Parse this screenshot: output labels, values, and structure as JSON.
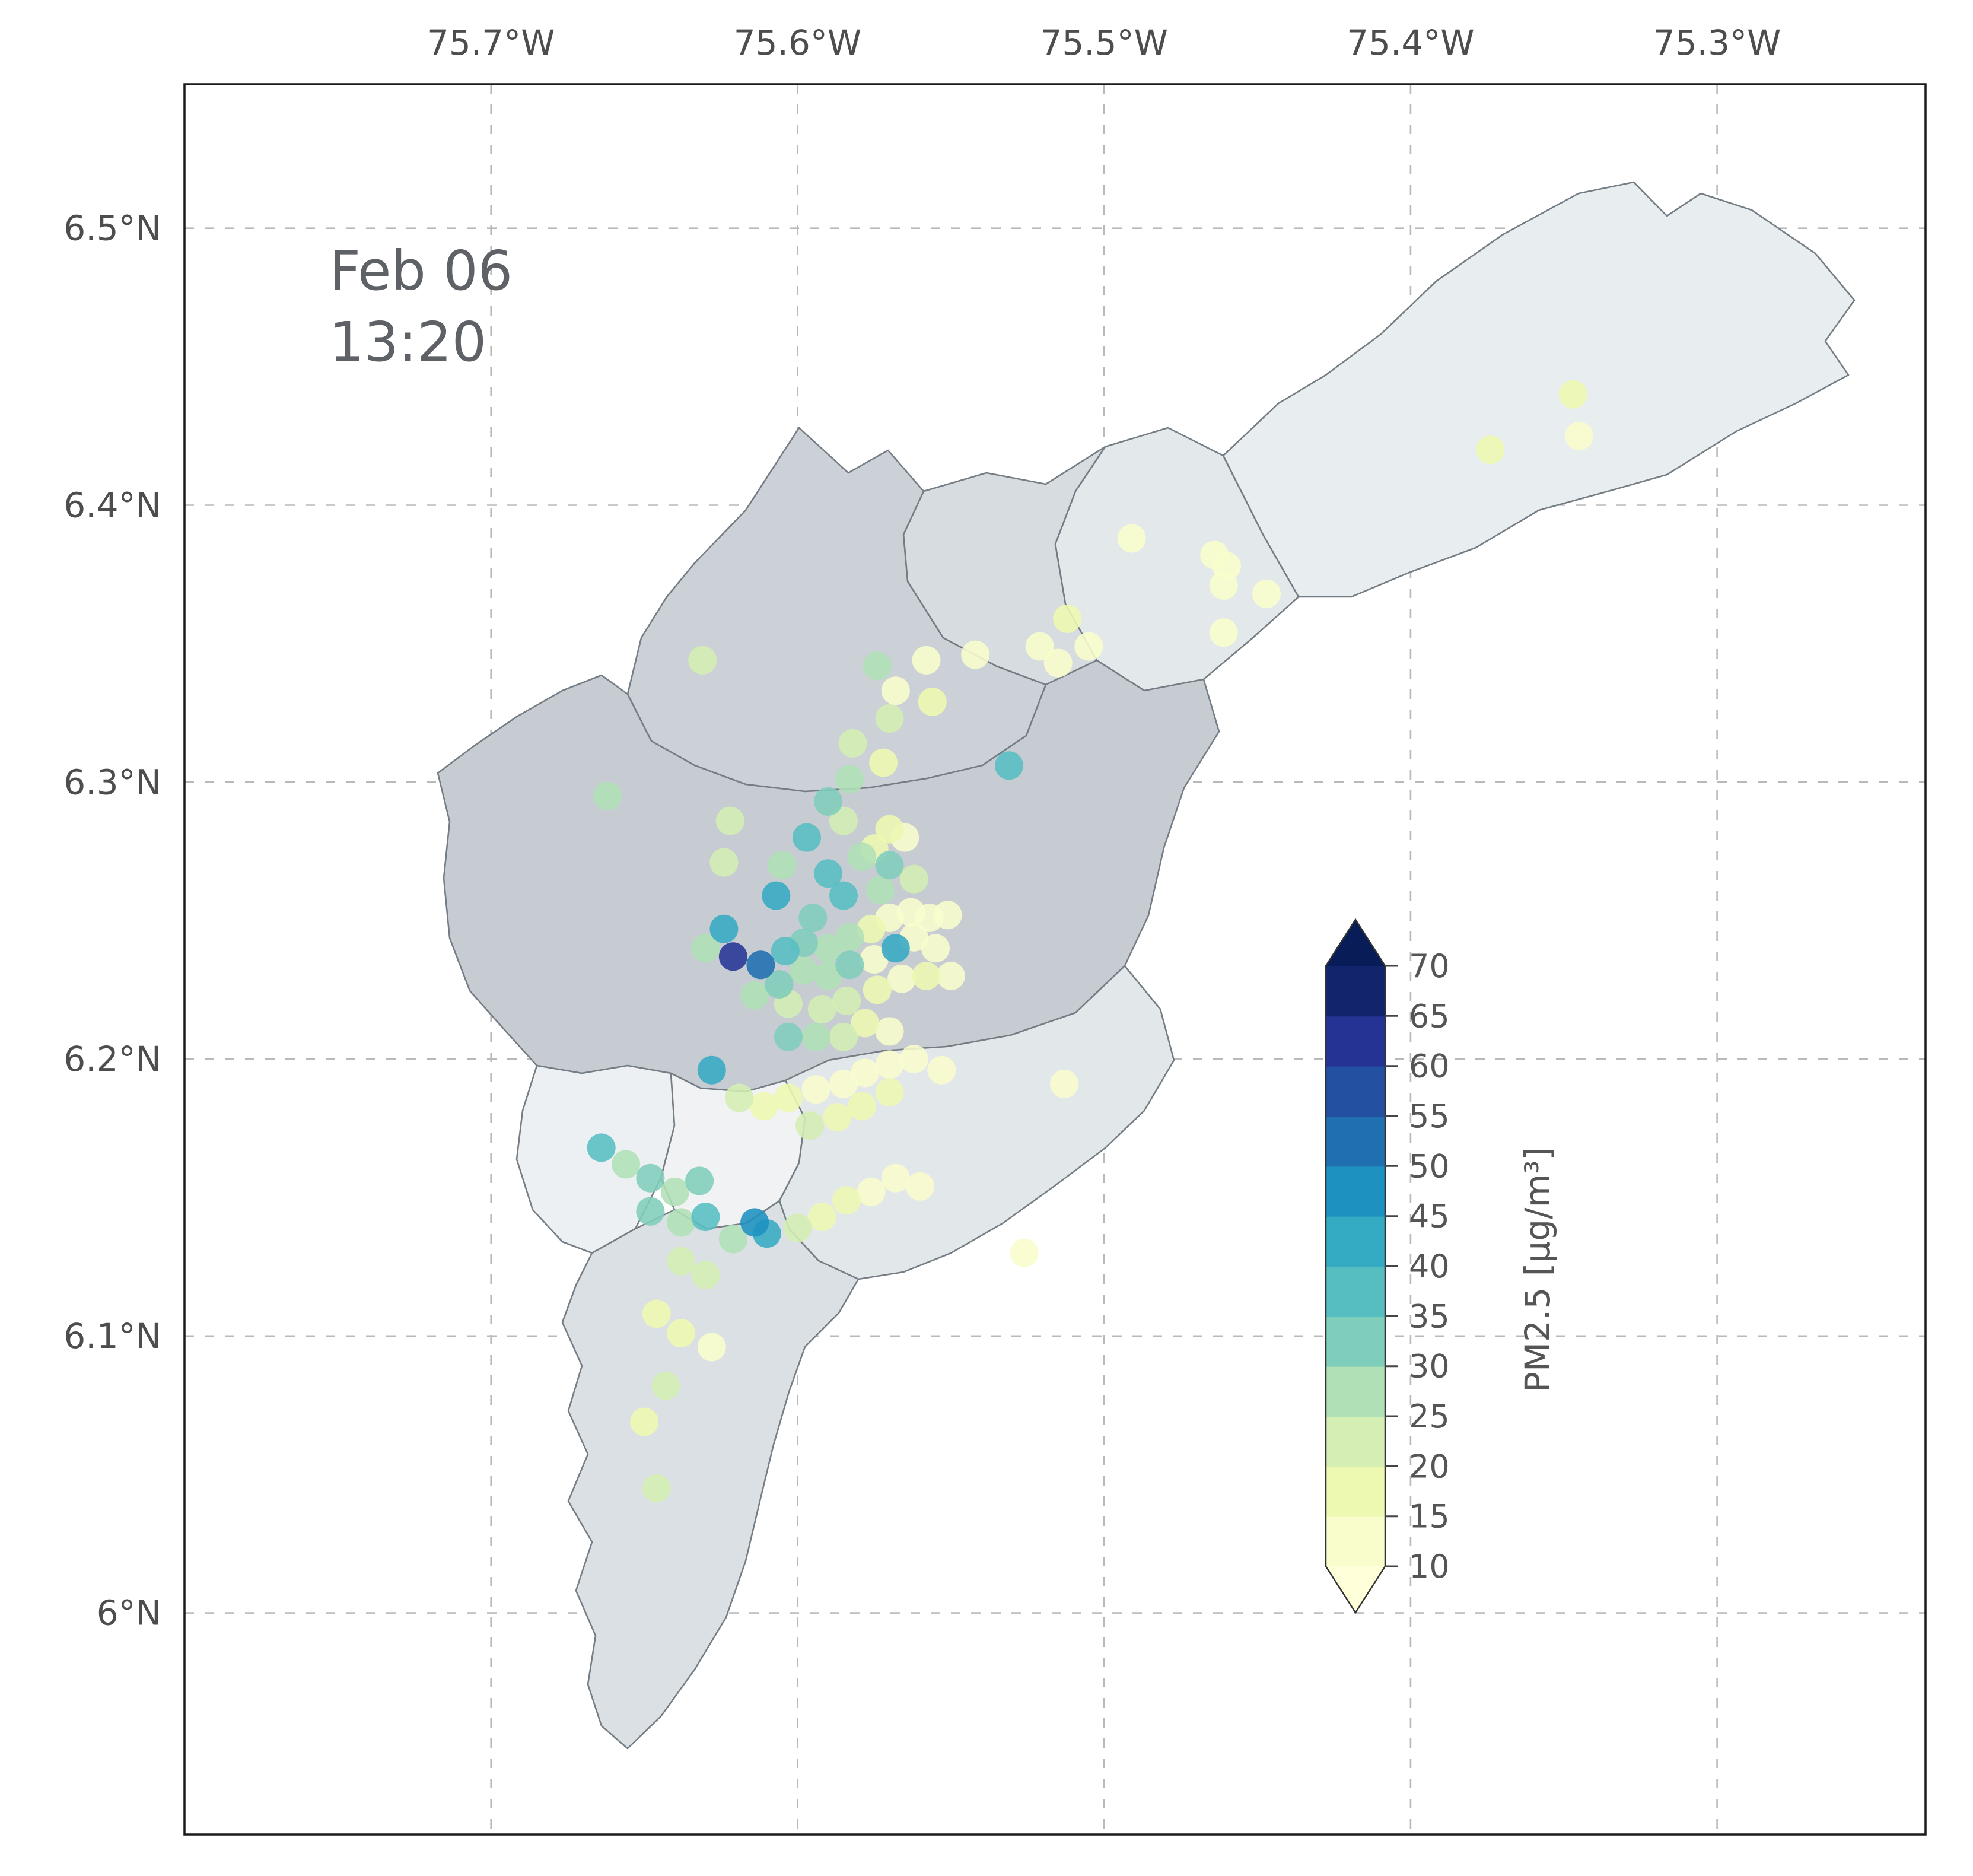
{
  "figure": {
    "timestamp_line1": "Feb 06",
    "timestamp_line2": "13:20"
  },
  "chart_data": {
    "type": "scatter",
    "title": "",
    "subtitle": "Geographic scatter map of PM2.5 station readings over municipality polygons",
    "x_axis": {
      "label": "",
      "ticks": [
        "75.7°W",
        "75.6°W",
        "75.5°W",
        "75.4°W",
        "75.3°W"
      ],
      "tick_values": [
        -75.7,
        -75.6,
        -75.5,
        -75.4,
        -75.3
      ],
      "range": [
        -75.8,
        -75.232
      ]
    },
    "y_axis": {
      "label": "",
      "ticks": [
        "6.5°N",
        "6.4°N",
        "6.3°N",
        "6.2°N",
        "6.1°N",
        "6°N"
      ],
      "tick_values": [
        6.5,
        6.4,
        6.3,
        6.2,
        6.1,
        6.0
      ],
      "range": [
        5.92,
        6.552
      ]
    },
    "grid": "dashed",
    "colorbar": {
      "label": "PM2.5 [μg/m³]",
      "ticks": [
        70,
        65,
        60,
        55,
        50,
        45,
        40,
        35,
        30,
        25,
        20,
        15,
        10
      ],
      "vmin": 10,
      "vmax": 70,
      "step": 5,
      "colormap": "YlGnBu",
      "extend": "both",
      "colormap_colors": [
        "#ffffd9",
        "#edf8b1",
        "#c7e9b4",
        "#7fcdbb",
        "#41b6c4",
        "#1d91c0",
        "#225ea8",
        "#253494",
        "#081d58"
      ]
    },
    "point_fields": [
      "lon",
      "lat",
      "pm25_ugm3"
    ],
    "points": [
      [
        -75.347,
        6.44,
        18
      ],
      [
        -75.345,
        6.425,
        12
      ],
      [
        -75.374,
        6.42,
        15
      ],
      [
        -75.491,
        6.388,
        13
      ],
      [
        -75.464,
        6.382,
        14
      ],
      [
        -75.46,
        6.378,
        12
      ],
      [
        -75.461,
        6.371,
        11
      ],
      [
        -75.447,
        6.368,
        12
      ],
      [
        -75.461,
        6.354,
        13
      ],
      [
        -75.512,
        6.359,
        16
      ],
      [
        -75.505,
        6.349,
        12
      ],
      [
        -75.521,
        6.349,
        13
      ],
      [
        -75.515,
        6.343,
        14
      ],
      [
        -75.542,
        6.346,
        12
      ],
      [
        -75.558,
        6.344,
        13
      ],
      [
        -75.574,
        6.342,
        25
      ],
      [
        -75.631,
        6.344,
        24
      ],
      [
        -75.568,
        6.333,
        14
      ],
      [
        -75.556,
        6.329,
        16
      ],
      [
        -75.531,
        6.306,
        38
      ],
      [
        -75.57,
        6.323,
        20
      ],
      [
        -75.582,
        6.314,
        22
      ],
      [
        -75.572,
        6.307,
        18
      ],
      [
        -75.583,
        6.301,
        25
      ],
      [
        -75.662,
        6.295,
        26
      ],
      [
        -75.622,
        6.286,
        22
      ],
      [
        -75.59,
        6.293,
        30
      ],
      [
        -75.585,
        6.286,
        20
      ],
      [
        -75.597,
        6.28,
        38
      ],
      [
        -75.605,
        6.27,
        25
      ],
      [
        -75.624,
        6.271,
        20
      ],
      [
        -75.59,
        6.267,
        35
      ],
      [
        -75.579,
        6.273,
        25
      ],
      [
        -75.575,
        6.276,
        18
      ],
      [
        -75.57,
        6.283,
        16
      ],
      [
        -75.565,
        6.28,
        14
      ],
      [
        -75.57,
        6.27,
        30
      ],
      [
        -75.562,
        6.265,
        20
      ],
      [
        -75.573,
        6.261,
        28
      ],
      [
        -75.585,
        6.259,
        35
      ],
      [
        -75.607,
        6.259,
        40
      ],
      [
        -75.595,
        6.251,
        30
      ],
      [
        -75.624,
        6.247,
        44
      ],
      [
        -75.63,
        6.24,
        28
      ],
      [
        -75.621,
        6.237,
        60
      ],
      [
        -75.612,
        6.234,
        50
      ],
      [
        -75.604,
        6.239,
        35
      ],
      [
        -75.598,
        6.242,
        30
      ],
      [
        -75.59,
        6.24,
        28
      ],
      [
        -75.583,
        6.244,
        25
      ],
      [
        -75.576,
        6.247,
        15
      ],
      [
        -75.57,
        6.251,
        13
      ],
      [
        -75.563,
        6.253,
        12
      ],
      [
        -75.557,
        6.251,
        14
      ],
      [
        -75.551,
        6.252,
        13
      ],
      [
        -75.562,
        6.244,
        12
      ],
      [
        -75.555,
        6.24,
        11
      ],
      [
        -75.568,
        6.24,
        42
      ],
      [
        -75.575,
        6.236,
        14
      ],
      [
        -75.583,
        6.234,
        30
      ],
      [
        -75.59,
        6.23,
        25
      ],
      [
        -75.598,
        6.232,
        28
      ],
      [
        -75.606,
        6.227,
        32
      ],
      [
        -75.614,
        6.223,
        26
      ],
      [
        -75.603,
        6.22,
        24
      ],
      [
        -75.592,
        6.218,
        20
      ],
      [
        -75.584,
        6.221,
        22
      ],
      [
        -75.574,
        6.225,
        16
      ],
      [
        -75.566,
        6.229,
        13
      ],
      [
        -75.558,
        6.23,
        15
      ],
      [
        -75.55,
        6.23,
        12
      ],
      [
        -75.578,
        6.213,
        18
      ],
      [
        -75.57,
        6.21,
        14
      ],
      [
        -75.585,
        6.208,
        20
      ],
      [
        -75.594,
        6.208,
        25
      ],
      [
        -75.603,
        6.208,
        30
      ],
      [
        -75.628,
        6.196,
        40
      ],
      [
        -75.619,
        6.186,
        22
      ],
      [
        -75.611,
        6.183,
        18
      ],
      [
        -75.603,
        6.186,
        16
      ],
      [
        -75.594,
        6.189,
        14
      ],
      [
        -75.585,
        6.191,
        13
      ],
      [
        -75.578,
        6.195,
        12
      ],
      [
        -75.57,
        6.198,
        14
      ],
      [
        -75.562,
        6.2,
        13
      ],
      [
        -75.553,
        6.196,
        12
      ],
      [
        -75.57,
        6.188,
        15
      ],
      [
        -75.579,
        6.183,
        16
      ],
      [
        -75.587,
        6.179,
        18
      ],
      [
        -75.596,
        6.176,
        20
      ],
      [
        -75.513,
        6.191,
        12
      ],
      [
        -75.664,
        6.168,
        35
      ],
      [
        -75.656,
        6.162,
        28
      ],
      [
        -75.648,
        6.157,
        32
      ],
      [
        -75.64,
        6.152,
        26
      ],
      [
        -75.632,
        6.156,
        30
      ],
      [
        -75.648,
        6.145,
        30
      ],
      [
        -75.638,
        6.141,
        28
      ],
      [
        -75.63,
        6.143,
        35
      ],
      [
        -75.614,
        6.141,
        46
      ],
      [
        -75.61,
        6.137,
        44
      ],
      [
        -75.621,
        6.135,
        25
      ],
      [
        -75.6,
        6.139,
        20
      ],
      [
        -75.592,
        6.143,
        16
      ],
      [
        -75.584,
        6.149,
        18
      ],
      [
        -75.576,
        6.152,
        14
      ],
      [
        -75.568,
        6.157,
        13
      ],
      [
        -75.56,
        6.154,
        12
      ],
      [
        -75.526,
        6.13,
        11
      ],
      [
        -75.638,
        6.127,
        22
      ],
      [
        -75.63,
        6.122,
        20
      ],
      [
        -75.646,
        6.108,
        18
      ],
      [
        -75.638,
        6.101,
        16
      ],
      [
        -75.628,
        6.096,
        14
      ],
      [
        -75.643,
        6.082,
        20
      ],
      [
        -75.65,
        6.069,
        15
      ],
      [
        -75.646,
        6.045,
        22
      ]
    ]
  }
}
